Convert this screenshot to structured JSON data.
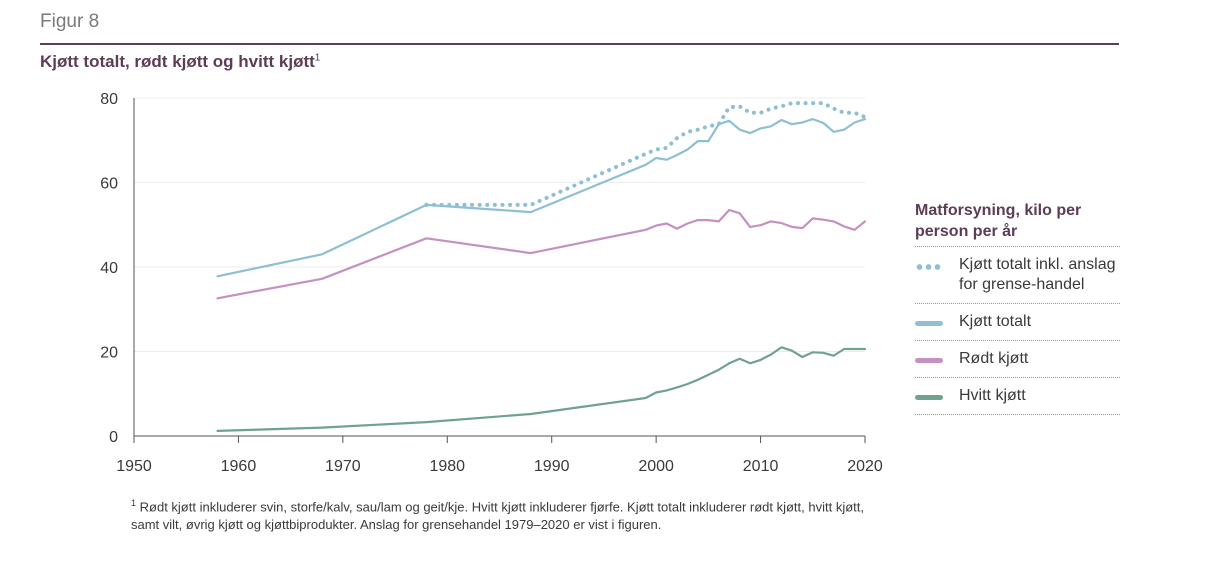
{
  "figure_label": "Figur 8",
  "title": "Kjøtt totalt, rødt kjøtt og hvitt kjøtt",
  "title_sup": "1",
  "colors": {
    "accent": "#5c3d55",
    "kjott_totalt": "#8fbfd2",
    "rodt_kjott": "#c491c0",
    "hvitt_kjott": "#6fa38e"
  },
  "legend": {
    "title": "Matforsyning, kilo per person per år",
    "items": [
      {
        "label": "Kjøtt totalt inkl. anslag for grense-handel",
        "color": "#8fbfd2",
        "style": "dotted"
      },
      {
        "label": "Kjøtt totalt",
        "color": "#8fbfd2",
        "style": "solid"
      },
      {
        "label": "Rødt kjøtt",
        "color": "#c491c0",
        "style": "solid"
      },
      {
        "label": "Hvitt kjøtt",
        "color": "#6fa38e",
        "style": "solid"
      }
    ]
  },
  "footnote": {
    "marker": "1",
    "text": "Rødt kjøtt inkluderer svin, storfe/kalv, sau/lam og geit/kje. Hvitt kjøtt inkluderer fjørfe. Kjøtt totalt inkluderer rødt kjøtt, hvitt kjøtt, samt vilt, øvrig kjøtt og kjøttbiprodukter. Anslag for grensehandel 1979–2020 er vist i figuren."
  },
  "chart_data": {
    "type": "line",
    "title": "Kjøtt totalt, rødt kjøtt og hvitt kjøtt",
    "xlabel": "",
    "ylabel": "",
    "xlim": [
      1950,
      2020
    ],
    "ylim": [
      0,
      80
    ],
    "xticks": [
      1950,
      1960,
      1970,
      1980,
      1990,
      2000,
      2010,
      2020
    ],
    "yticks": [
      0,
      20,
      40,
      60,
      80
    ],
    "grid": "horizontal",
    "legend_position": "right",
    "series": [
      {
        "name": "Kjøtt totalt inkl. anslag for grense-handel",
        "style": "dotted",
        "color": "#8fbfd2",
        "x": [
          1978,
          1988,
          1999,
          2000,
          2001,
          2002,
          2003,
          2004,
          2005,
          2006,
          2007,
          2008,
          2009,
          2010,
          2011,
          2012,
          2013,
          2014,
          2015,
          2016,
          2017,
          2018,
          2019,
          2020
        ],
        "y": [
          54.7,
          54.7,
          66.8,
          67.8,
          68.2,
          70.5,
          72.0,
          72.5,
          73.3,
          73.8,
          77.8,
          78.0,
          76.5,
          76.5,
          77.5,
          78.0,
          78.8,
          78.8,
          78.8,
          78.8,
          77.5,
          76.5,
          76.5,
          75.5
        ]
      },
      {
        "name": "Kjøtt totalt",
        "style": "solid",
        "color": "#8fbfd2",
        "x": [
          1958,
          1968,
          1978,
          1988,
          1999,
          2000,
          2001,
          2002,
          2003,
          2004,
          2005,
          2006,
          2007,
          2008,
          2009,
          2010,
          2011,
          2012,
          2013,
          2014,
          2015,
          2016,
          2017,
          2018,
          2019,
          2020
        ],
        "y": [
          37.8,
          43.0,
          54.7,
          53.0,
          64.2,
          65.8,
          65.4,
          66.5,
          67.8,
          69.8,
          69.8,
          73.8,
          74.6,
          72.5,
          71.7,
          72.8,
          73.3,
          74.8,
          73.8,
          74.2,
          75.0,
          74.1,
          72.0,
          72.5,
          74.2,
          75.0
        ]
      },
      {
        "name": "Rødt kjøtt",
        "style": "solid",
        "color": "#c491c0",
        "x": [
          1958,
          1968,
          1978,
          1988,
          1999,
          2000,
          2001,
          2002,
          2003,
          2004,
          2005,
          2006,
          2007,
          2008,
          2009,
          2010,
          2011,
          2012,
          2013,
          2014,
          2015,
          2016,
          2017,
          2018,
          2019,
          2020
        ],
        "y": [
          32.6,
          37.2,
          46.8,
          43.3,
          48.8,
          49.8,
          50.3,
          49.1,
          50.3,
          51.1,
          51.1,
          50.8,
          53.5,
          52.7,
          49.5,
          49.9,
          50.8,
          50.4,
          49.5,
          49.2,
          51.5,
          51.2,
          50.8,
          49.6,
          48.8,
          50.8
        ]
      },
      {
        "name": "Hvitt kjøtt",
        "style": "solid",
        "color": "#6fa38e",
        "x": [
          1958,
          1968,
          1978,
          1988,
          1999,
          2000,
          2001,
          2002,
          2003,
          2004,
          2005,
          2006,
          2007,
          2008,
          2009,
          2010,
          2011,
          2012,
          2013,
          2014,
          2015,
          2016,
          2017,
          2018,
          2019,
          2020
        ],
        "y": [
          1.2,
          2.0,
          3.3,
          5.2,
          9.0,
          10.3,
          10.8,
          11.5,
          12.3,
          13.3,
          14.5,
          15.7,
          17.2,
          18.3,
          17.2,
          18.0,
          19.3,
          21.0,
          20.2,
          18.7,
          19.8,
          19.7,
          19.0,
          20.6,
          20.6,
          20.6
        ]
      }
    ]
  }
}
